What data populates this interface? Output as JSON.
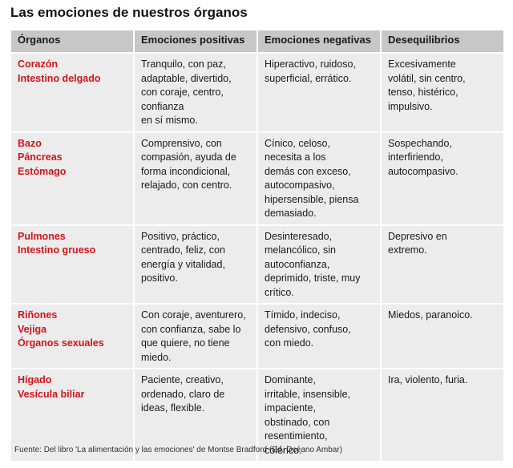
{
  "title": "Las emociones de nuestros órganos",
  "headers": [
    "Órganos",
    "Emociones positivas",
    "Emociones negativas",
    "Desequilibrios"
  ],
  "rows": [
    {
      "organs": [
        "Corazón",
        "Intestino delgado"
      ],
      "positive": [
        "Tranquilo, con paz,",
        "adaptable, divertido,",
        "con coraje, centro,",
        "confianza",
        "en sí mismo."
      ],
      "negative": [
        "Hiperactivo, ruidoso,",
        "superficial, errático."
      ],
      "imbalance": [
        "Excesivamente",
        "volátil, sin centro,",
        "tenso, histérico,",
        "impulsivo."
      ]
    },
    {
      "organs": [
        "Bazo",
        "Páncreas",
        "Estómago"
      ],
      "positive": [
        "Comprensivo, con",
        "compasión, ayuda de",
        "forma incondicional,",
        "relajado, con centro."
      ],
      "negative": [
        "Cínico, celoso,",
        "necesita a los",
        "demás con exceso,",
        "autocompasivo,",
        "hipersensible, piensa",
        "demasiado."
      ],
      "imbalance": [
        "Sospechando,",
        "interfiriendo,",
        "autocompasivo."
      ]
    },
    {
      "organs": [
        "Pulmones",
        "Intestino grueso"
      ],
      "positive": [
        "Positivo, práctico,",
        "centrado, feliz, con",
        "energía y vitalidad,",
        "positivo."
      ],
      "negative": [
        "Desinteresado,",
        "melancólico, sin",
        "autoconfianza,",
        "deprimido, triste, muy",
        "crítico."
      ],
      "imbalance": [
        "Depresivo en",
        "extremo."
      ]
    },
    {
      "organs": [
        "Riñones",
        "Vejiga",
        "Órganos sexuales"
      ],
      "positive": [
        "Con coraje, aventurero,",
        "con confianza, sabe lo",
        "que quiere, no tiene",
        "miedo."
      ],
      "negative": [
        "Tímido, indeciso,",
        "defensivo, confuso,",
        "con miedo."
      ],
      "imbalance": [
        "Miedos, paranoico."
      ]
    },
    {
      "organs": [
        "Hígado",
        "Vesícula biliar"
      ],
      "positive": [
        "Paciente, creativo,",
        "ordenado, claro de",
        "ideas, flexible."
      ],
      "negative": [
        "Dominante,",
        "irritable, insensible,",
        "impaciente,",
        "obstinado, con",
        "resentimiento,",
        "colérico."
      ],
      "imbalance": [
        "Ira, violento, furia."
      ]
    }
  ],
  "source": "Fuente: Del libro 'La alimentación y las emociones' de Montse Bradford (Ed. Océano Ambar)"
}
